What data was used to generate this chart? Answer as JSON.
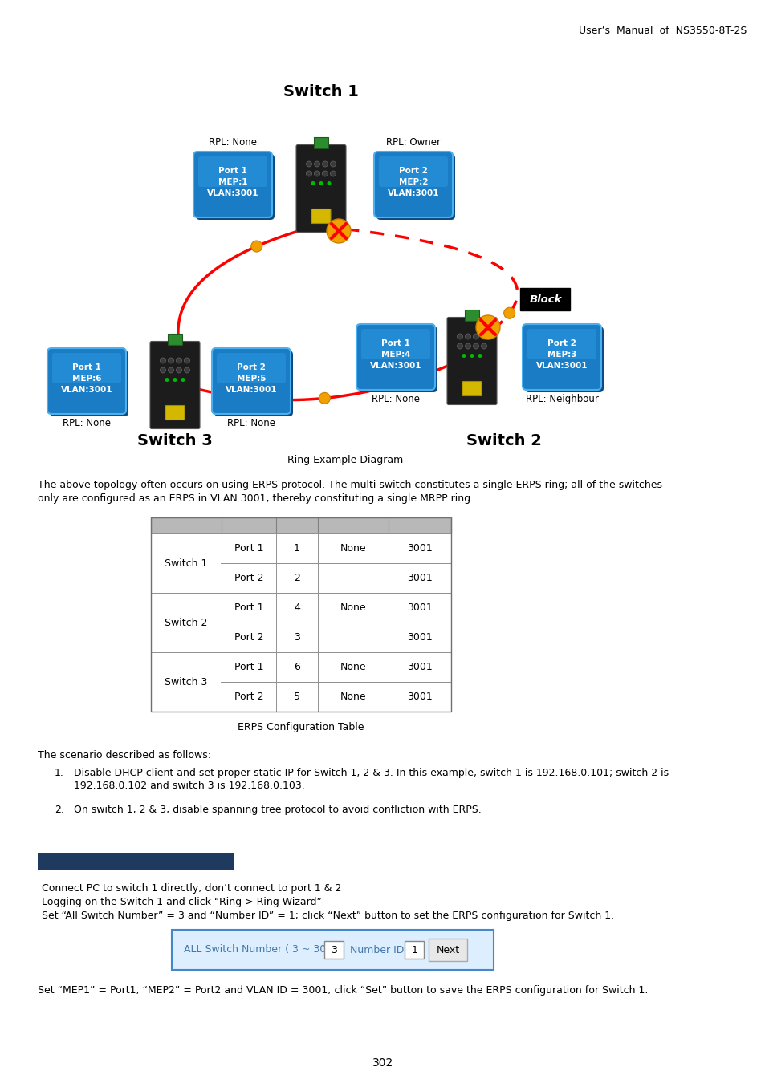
{
  "header": "User’s  Manual  of  NS3550-8T-2S",
  "title_switch1": "Switch 1",
  "title_switch2": "Switch 2",
  "title_switch3": "Switch 3",
  "diagram_caption": "Ring Example Diagram",
  "paragraph1": "The above topology often occurs on using ERPS protocol. The multi switch constitutes a single ERPS ring; all of the switches\nonly are configured as an ERPS in VLAN 3001, thereby constituting a single MRPP ring.",
  "table_caption": "ERPS Configuration Table",
  "scenario_title": "The scenario described as follows:",
  "blue_bar_color": "#1e3a5f",
  "instructions": [
    "Connect PC to switch 1 directly; don’t connect to port 1 & 2",
    "Logging on the Switch 1 and click “Ring > Ring Wizard”",
    "Set “All Switch Number” = 3 and “Number ID” = 1; click “Next” button to set the ERPS configuration for Switch 1."
  ],
  "final_instruction": "Set “MEP1” = Port1, “MEP2” = Port2 and VLAN ID = 3001; click “Set” button to save the ERPS configuration for Switch 1.",
  "page_number": "302",
  "bg_color": "#ffffff",
  "switch3_port1_label": "Port 1\nMEP:6\nVLAN:3001",
  "switch3_port2_label": "Port 2\nMEP:5\nVLAN:3001",
  "switch2_port1_label": "Port 1\nMEP:4\nVLAN:3001",
  "switch2_port2_label": "Port 2\nMEP:3\nVLAN:3001",
  "switch1_port1_label": "Port 1\nMEP:1\nVLAN:3001",
  "switch1_port2_label": "Port 2\nMEP:2\nVLAN:3001"
}
